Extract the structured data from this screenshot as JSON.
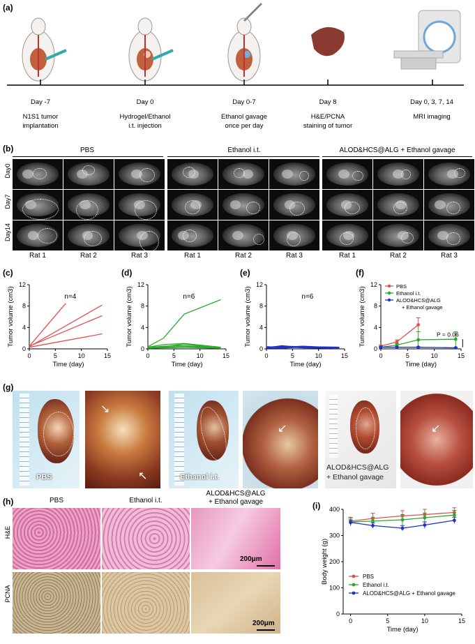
{
  "panel_labels": {
    "a": "(a)",
    "b": "(b)",
    "c": "(c)",
    "d": "(d)",
    "e": "(e)",
    "f": "(f)",
    "g": "(g)",
    "h": "(h)",
    "i": "(i)"
  },
  "timeline": [
    {
      "day": "Day -7",
      "desc1": "N1S1 tumor",
      "desc2": "implantation"
    },
    {
      "day": "Day 0",
      "desc1": "Hydrogel/Ethanol",
      "desc2": "i.t. injection"
    },
    {
      "day": "Day 0-7",
      "desc1": "Ethanol gavage",
      "desc2": "once per day"
    },
    {
      "day": "Day 8",
      "desc1": "H&E/PCNA",
      "desc2": "staining of tumor"
    },
    {
      "day": "Day 0, 3, 7, 14",
      "desc1": "MRI imaging",
      "desc2": ""
    }
  ],
  "mri": {
    "groups": [
      "PBS",
      "Ethanol i.t.",
      "ALOD&HCS@ALG + Ethanol gavage"
    ],
    "rows": [
      "Day0",
      "Day7",
      "Day14"
    ],
    "rats": [
      "Rat 1",
      "Rat 2",
      "Rat 3",
      "Rat 1",
      "Rat 2",
      "Rat 3",
      "Rat 1",
      "Rat 2",
      "Rat 3"
    ]
  },
  "chart_data": [
    {
      "panel": "c",
      "type": "line",
      "n_label": "n=4",
      "xlabel": "Time (day)",
      "ylabel": "Tumor volume (cm3)",
      "xlim": [
        0,
        15
      ],
      "ylim": [
        0,
        12
      ],
      "xticks": [
        0,
        5,
        10,
        15
      ],
      "yticks": [
        0,
        4,
        8,
        12
      ],
      "color": "#e05050",
      "series": [
        {
          "x": [
            0,
            7
          ],
          "y": [
            0.5,
            8.5
          ]
        },
        {
          "x": [
            0,
            14
          ],
          "y": [
            0.4,
            8.2
          ]
        },
        {
          "x": [
            0,
            14
          ],
          "y": [
            0.5,
            6.2
          ]
        },
        {
          "x": [
            0,
            14
          ],
          "y": [
            0.3,
            2.8
          ]
        }
      ]
    },
    {
      "panel": "d",
      "type": "line",
      "n_label": "n=6",
      "xlabel": "Time (day)",
      "ylabel": "Tumor volume (cm3)",
      "xlim": [
        0,
        15
      ],
      "ylim": [
        0,
        12
      ],
      "xticks": [
        0,
        5,
        10,
        15
      ],
      "yticks": [
        0,
        4,
        8,
        12
      ],
      "color": "#2aa82a",
      "series": [
        {
          "x": [
            0,
            3,
            7,
            14
          ],
          "y": [
            0.4,
            2.0,
            6.5,
            9.2
          ]
        },
        {
          "x": [
            0,
            3,
            7,
            14
          ],
          "y": [
            0.3,
            0.8,
            1.0,
            0.3
          ]
        },
        {
          "x": [
            0,
            3,
            7,
            14
          ],
          "y": [
            0.2,
            0.5,
            0.6,
            0.2
          ]
        },
        {
          "x": [
            0,
            3,
            7,
            14
          ],
          "y": [
            0.3,
            0.4,
            0.9,
            0.1
          ]
        },
        {
          "x": [
            0,
            3,
            7,
            14
          ],
          "y": [
            0.1,
            0.2,
            0.3,
            0.1
          ]
        },
        {
          "x": [
            0,
            3,
            7,
            14
          ],
          "y": [
            0.2,
            0.3,
            0.4,
            0.2
          ]
        }
      ]
    },
    {
      "panel": "e",
      "type": "line",
      "n_label": "n=6",
      "xlabel": "Time (day)",
      "ylabel": "Tumor volume (cm3)",
      "xlim": [
        0,
        15
      ],
      "ylim": [
        0,
        12
      ],
      "xticks": [
        0,
        5,
        10,
        15
      ],
      "yticks": [
        0,
        4,
        8,
        12
      ],
      "color": "#2030c8",
      "series": [
        {
          "x": [
            0,
            3,
            7,
            14
          ],
          "y": [
            0.3,
            0.5,
            0.4,
            0.3
          ]
        },
        {
          "x": [
            0,
            3,
            7,
            14
          ],
          "y": [
            0.2,
            0.6,
            0.2,
            0.1
          ]
        },
        {
          "x": [
            0,
            3,
            7,
            14
          ],
          "y": [
            0.4,
            0.3,
            0.5,
            0.2
          ]
        },
        {
          "x": [
            0,
            3,
            7,
            14
          ],
          "y": [
            0.1,
            0.2,
            0.3,
            0.2
          ]
        },
        {
          "x": [
            0,
            3,
            7,
            14
          ],
          "y": [
            0.3,
            0.4,
            0.2,
            0.1
          ]
        },
        {
          "x": [
            0,
            3,
            7,
            14
          ],
          "y": [
            0.2,
            0.1,
            0.4,
            0.3
          ]
        }
      ]
    },
    {
      "panel": "f",
      "type": "line",
      "xlabel": "Time (day)",
      "ylabel": "Tumor volume (cm3)",
      "xlim": [
        0,
        15
      ],
      "ylim": [
        0,
        12
      ],
      "xticks": [
        0,
        5,
        10,
        15
      ],
      "yticks": [
        0,
        4,
        8,
        12
      ],
      "annotation": "P = 0.06",
      "series": [
        {
          "name": "PBS",
          "color": "#e05050",
          "x": [
            0,
            3,
            7
          ],
          "y": [
            0.5,
            1.3,
            4.5
          ],
          "err": [
            0.2,
            0.4,
            1.3
          ]
        },
        {
          "name": "Ethanol i.t.",
          "color": "#2aa82a",
          "x": [
            0,
            3,
            7,
            14
          ],
          "y": [
            0.3,
            0.7,
            1.7,
            1.8
          ],
          "err": [
            0.1,
            0.3,
            1.5,
            1.4
          ]
        },
        {
          "name": "ALOD&HCS@ALG + Ethanol gavage",
          "color": "#2030c8",
          "x": [
            0,
            3,
            7,
            14
          ],
          "y": [
            0.3,
            0.3,
            0.3,
            0.2
          ],
          "err": [
            0.05,
            0.1,
            0.1,
            0.05
          ]
        }
      ]
    },
    {
      "panel": "i",
      "type": "line",
      "xlabel": "Time (day)",
      "ylabel": "Body weight (g)",
      "xlim": [
        -1,
        15
      ],
      "ylim": [
        0,
        400
      ],
      "xticks": [
        0,
        5,
        10,
        15
      ],
      "yticks": [
        0,
        100,
        200,
        300,
        400
      ],
      "series": [
        {
          "name": "PBS",
          "color": "#e05050",
          "x": [
            0,
            3,
            7,
            10,
            14
          ],
          "y": [
            355,
            365,
            375,
            380,
            388
          ],
          "err": [
            15,
            20,
            20,
            20,
            18
          ]
        },
        {
          "name": "Ethanol i.t.",
          "color": "#2aa82a",
          "x": [
            0,
            3,
            7,
            10,
            14
          ],
          "y": [
            352,
            355,
            360,
            368,
            378
          ],
          "err": [
            15,
            15,
            20,
            18,
            18
          ]
        },
        {
          "name": "ALOD&HCS@ALG + Ethanol gavage",
          "color": "#2030c8",
          "x": [
            0,
            3,
            7,
            10,
            14
          ],
          "y": [
            350,
            338,
            328,
            340,
            358
          ],
          "err": [
            10,
            10,
            10,
            12,
            12
          ]
        }
      ]
    }
  ],
  "gross": {
    "labels": [
      "PBS",
      "Ethanol i.t.",
      "ALOD&HCS@ALG",
      "+ Ethanol gavage"
    ]
  },
  "histology": {
    "cols": [
      "PBS",
      "Ethanol i.t.",
      "ALOD&HCS@ALG",
      "+ Ethanol gavage"
    ],
    "rows": [
      "H&E",
      "PCNA"
    ],
    "scale": "200μm"
  },
  "f_legend_extra": "+ Ethanol gavage"
}
